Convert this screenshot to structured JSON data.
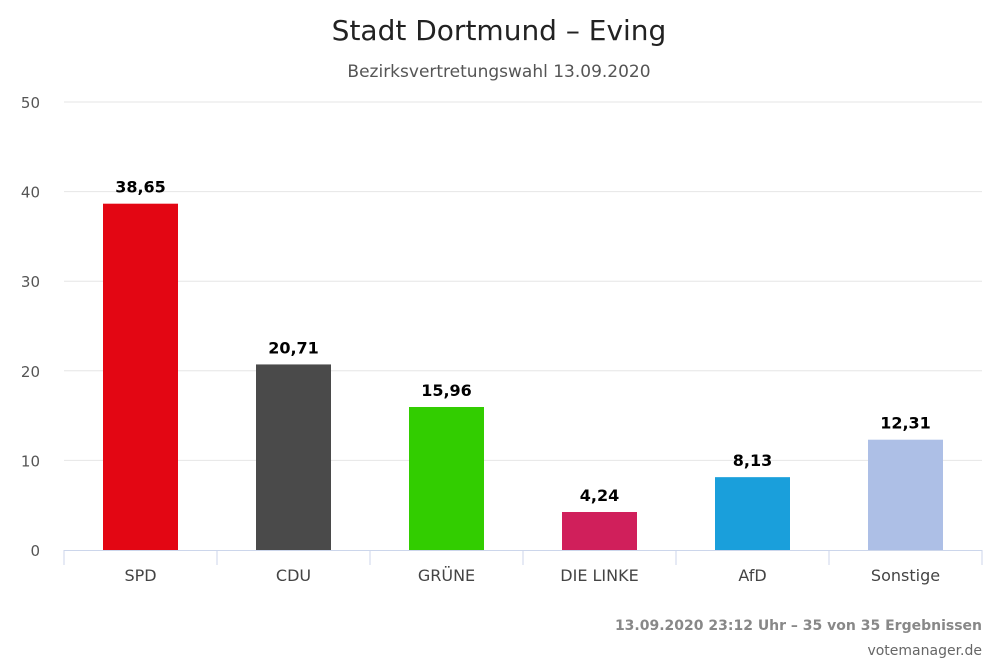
{
  "chart_data": {
    "type": "bar",
    "title": "Stadt Dortmund – Eving",
    "subtitle": "Bezirksvertretungswahl 13.09.2020",
    "categories": [
      "SPD",
      "CDU",
      "GRÜNE",
      "DIE LINKE",
      "AfD",
      "Sonstige"
    ],
    "values": [
      38.65,
      20.71,
      15.96,
      4.24,
      8.13,
      12.31
    ],
    "data_labels": [
      "38,65",
      "20,71",
      "15,96",
      "4,24",
      "8,13",
      "12,31"
    ],
    "colors": [
      "#e30613",
      "#4a4a4a",
      "#32cd00",
      "#d01f5b",
      "#1a9fdb",
      "#adbfe6"
    ],
    "ylim": [
      0,
      50
    ],
    "yticks": [
      0,
      10,
      20,
      30,
      40,
      50
    ],
    "grid": true,
    "legend": "none"
  },
  "footer": {
    "status": "13.09.2020 23:12 Uhr – 35 von 35 Ergebnissen",
    "credit": "votemanager.de"
  }
}
